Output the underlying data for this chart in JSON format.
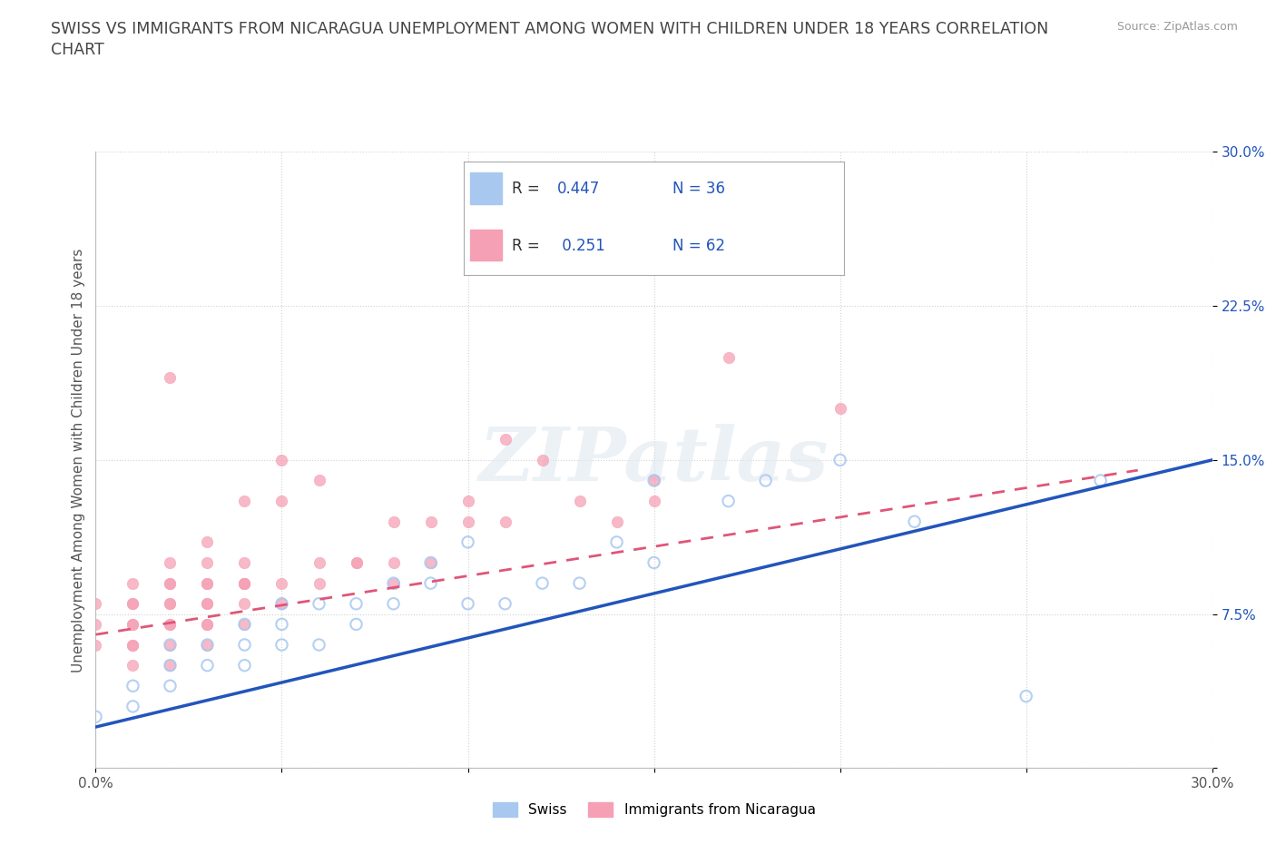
{
  "title_line1": "SWISS VS IMMIGRANTS FROM NICARAGUA UNEMPLOYMENT AMONG WOMEN WITH CHILDREN UNDER 18 YEARS CORRELATION",
  "title_line2": "CHART",
  "source": "Source: ZipAtlas.com",
  "ylabel": "Unemployment Among Women with Children Under 18 years",
  "xmin": 0.0,
  "xmax": 0.3,
  "ymin": 0.0,
  "ymax": 0.3,
  "xtick_positions": [
    0.0,
    0.05,
    0.1,
    0.15,
    0.2,
    0.25,
    0.3
  ],
  "xtick_labels": [
    "0.0%",
    "",
    "",
    "",
    "",
    "",
    "30.0%"
  ],
  "ytick_positions": [
    0.0,
    0.075,
    0.15,
    0.225,
    0.3
  ],
  "ytick_labels": [
    "",
    "7.5%",
    "15.0%",
    "22.5%",
    "30.0%"
  ],
  "watermark": "ZIPatlas",
  "swiss_color": "#a8c8f0",
  "nicaragua_color": "#f5a0b5",
  "swiss_line_color": "#2255bb",
  "nicaragua_line_color": "#e05578",
  "blue_text_color": "#2255bb",
  "swiss_scatter_x": [
    0.0,
    0.01,
    0.01,
    0.02,
    0.02,
    0.02,
    0.03,
    0.03,
    0.04,
    0.04,
    0.04,
    0.05,
    0.05,
    0.05,
    0.06,
    0.06,
    0.07,
    0.07,
    0.08,
    0.08,
    0.09,
    0.09,
    0.1,
    0.1,
    0.11,
    0.12,
    0.13,
    0.14,
    0.15,
    0.15,
    0.17,
    0.18,
    0.2,
    0.22,
    0.25,
    0.27
  ],
  "swiss_scatter_y": [
    0.025,
    0.03,
    0.04,
    0.04,
    0.05,
    0.06,
    0.05,
    0.06,
    0.05,
    0.06,
    0.07,
    0.06,
    0.07,
    0.08,
    0.06,
    0.08,
    0.07,
    0.08,
    0.08,
    0.09,
    0.09,
    0.1,
    0.08,
    0.11,
    0.08,
    0.09,
    0.09,
    0.11,
    0.1,
    0.14,
    0.13,
    0.14,
    0.15,
    0.12,
    0.035,
    0.14
  ],
  "nicaragua_scatter_x": [
    0.0,
    0.0,
    0.0,
    0.01,
    0.01,
    0.01,
    0.01,
    0.01,
    0.01,
    0.01,
    0.01,
    0.02,
    0.02,
    0.02,
    0.02,
    0.02,
    0.02,
    0.02,
    0.02,
    0.02,
    0.02,
    0.03,
    0.03,
    0.03,
    0.03,
    0.03,
    0.03,
    0.03,
    0.03,
    0.03,
    0.04,
    0.04,
    0.04,
    0.04,
    0.04,
    0.04,
    0.04,
    0.05,
    0.05,
    0.05,
    0.05,
    0.06,
    0.06,
    0.06,
    0.07,
    0.07,
    0.08,
    0.08,
    0.08,
    0.09,
    0.09,
    0.1,
    0.1,
    0.11,
    0.11,
    0.12,
    0.13,
    0.14,
    0.15,
    0.15,
    0.17,
    0.2
  ],
  "nicaragua_scatter_y": [
    0.06,
    0.07,
    0.08,
    0.05,
    0.06,
    0.06,
    0.07,
    0.07,
    0.08,
    0.08,
    0.09,
    0.05,
    0.06,
    0.07,
    0.07,
    0.08,
    0.08,
    0.09,
    0.09,
    0.1,
    0.19,
    0.06,
    0.07,
    0.07,
    0.08,
    0.08,
    0.09,
    0.09,
    0.1,
    0.11,
    0.07,
    0.08,
    0.09,
    0.09,
    0.09,
    0.1,
    0.13,
    0.08,
    0.09,
    0.13,
    0.15,
    0.09,
    0.1,
    0.14,
    0.1,
    0.1,
    0.09,
    0.1,
    0.12,
    0.1,
    0.12,
    0.12,
    0.13,
    0.12,
    0.16,
    0.15,
    0.13,
    0.12,
    0.14,
    0.13,
    0.2,
    0.175
  ],
  "swiss_trend_x0": 0.0,
  "swiss_trend_y0": 0.02,
  "swiss_trend_x1": 0.3,
  "swiss_trend_y1": 0.15,
  "nica_trend_x0": 0.0,
  "nica_trend_y0": 0.065,
  "nica_trend_x1": 0.28,
  "nica_trend_y1": 0.145,
  "grid_color": "#cccccc",
  "background_color": "#ffffff"
}
